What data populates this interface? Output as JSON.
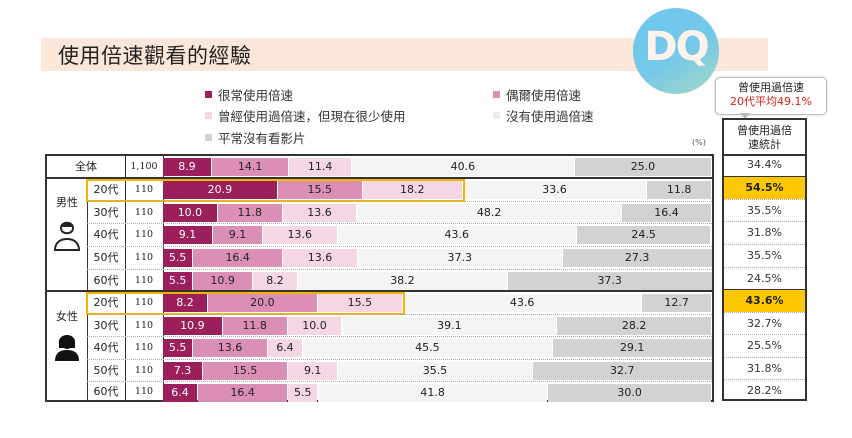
{
  "title": "使用倍速觀看的經驗",
  "logo_text": "DQ",
  "colors": {
    "often": "#9b1f5b",
    "sometimes": "#dc8fb6",
    "rarely": "#f5d6e5",
    "never": "#f4f4f4",
    "no_video": "#d2d2d2",
    "highlight": "#fcc800",
    "callout_red": "#e0201c"
  },
  "legend": [
    {
      "key": "often",
      "label": "很常使用倍速"
    },
    {
      "key": "sometimes",
      "label": "偶爾使用倍速"
    },
    {
      "key": "rarely",
      "label": "曾經使用過倍速，但現在很少使用"
    },
    {
      "key": "never",
      "label": "沒有使用過倍速"
    },
    {
      "key": "no_video",
      "label": "平常沒有看影片"
    }
  ],
  "unit_label": "(%)",
  "callout": {
    "line1": "曾使用過倍速",
    "line2": "20代平均49.1%"
  },
  "stat_header": {
    "line1": "曾使用過倍",
    "line2": "速統計"
  },
  "groups": {
    "male": "男性",
    "female": "女性"
  },
  "chart_data": {
    "type": "bar",
    "orientation": "horizontal",
    "stacked": true,
    "title": "使用倍速觀看的經驗",
    "unit": "%",
    "xlim": [
      0,
      100
    ],
    "series_names": [
      "很常使用倍速",
      "偶爾使用倍速",
      "曾經使用過倍速，但現在很少使用",
      "沒有使用過倍速",
      "平常沒有看影片"
    ],
    "rows": [
      {
        "group": "",
        "label": "全体",
        "n": "1,100",
        "values": [
          8.9,
          14.1,
          11.4,
          40.6,
          25.0
        ],
        "total": "34.4%",
        "highlight": false
      },
      {
        "group": "男性",
        "label": "20代",
        "n": "110",
        "values": [
          20.9,
          15.5,
          18.2,
          33.6,
          11.8
        ],
        "total": "54.5%",
        "highlight": true
      },
      {
        "group": "男性",
        "label": "30代",
        "n": "110",
        "values": [
          10.0,
          11.8,
          13.6,
          48.2,
          16.4
        ],
        "total": "35.5%",
        "highlight": false
      },
      {
        "group": "男性",
        "label": "40代",
        "n": "110",
        "values": [
          9.1,
          9.1,
          13.6,
          43.6,
          24.5
        ],
        "total": "31.8%",
        "highlight": false
      },
      {
        "group": "男性",
        "label": "50代",
        "n": "110",
        "values": [
          5.5,
          16.4,
          13.6,
          37.3,
          27.3
        ],
        "total": "35.5%",
        "highlight": false
      },
      {
        "group": "男性",
        "label": "60代",
        "n": "110",
        "values": [
          5.5,
          10.9,
          8.2,
          38.2,
          37.3
        ],
        "total": "24.5%",
        "highlight": false
      },
      {
        "group": "女性",
        "label": "20代",
        "n": "110",
        "values": [
          8.2,
          20.0,
          15.5,
          43.6,
          12.7
        ],
        "total": "43.6%",
        "highlight": true
      },
      {
        "group": "女性",
        "label": "30代",
        "n": "110",
        "values": [
          10.9,
          11.8,
          10.0,
          39.1,
          28.2
        ],
        "total": "32.7%",
        "highlight": false
      },
      {
        "group": "女性",
        "label": "40代",
        "n": "110",
        "values": [
          5.5,
          13.6,
          6.4,
          45.5,
          29.1
        ],
        "total": "25.5%",
        "highlight": false
      },
      {
        "group": "女性",
        "label": "50代",
        "n": "110",
        "values": [
          7.3,
          15.5,
          9.1,
          35.5,
          32.7
        ],
        "total": "31.8%",
        "highlight": false
      },
      {
        "group": "女性",
        "label": "60代",
        "n": "110",
        "values": [
          6.4,
          16.4,
          5.5,
          41.8,
          30.0
        ],
        "total": "28.2%",
        "highlight": false
      }
    ]
  }
}
